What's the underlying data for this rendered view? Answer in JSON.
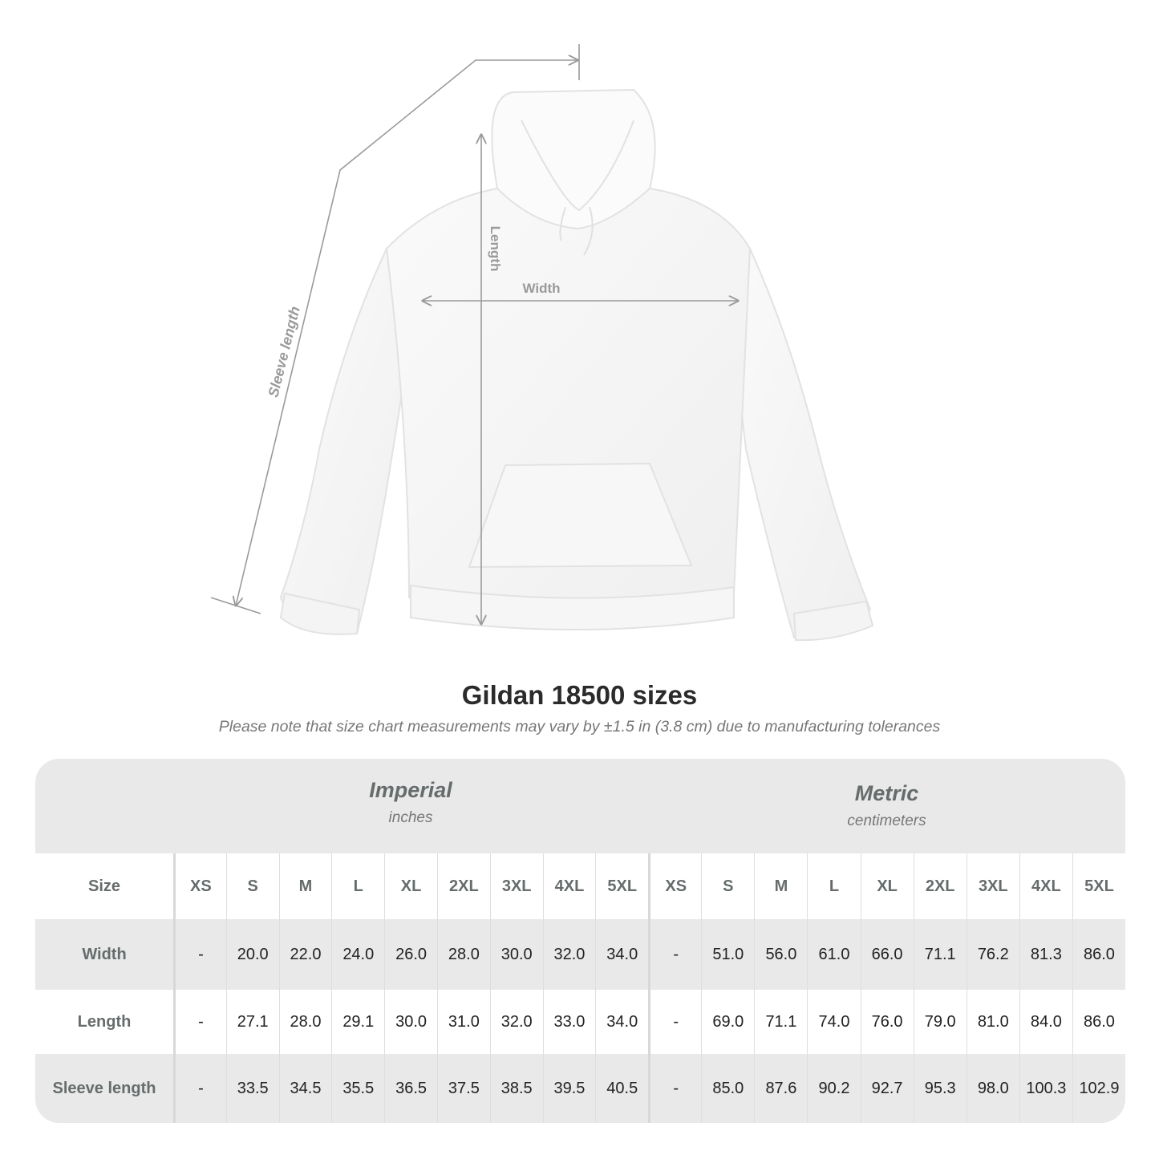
{
  "diagram": {
    "labels": {
      "length": "Length",
      "width": "Width",
      "sleeve": "Sleeve length"
    },
    "line_color": "#9a9a9a"
  },
  "title": "Gildan 18500 sizes",
  "note": "Please note that size chart measurements may vary by ±1.5 in (3.8 cm) due to manufacturing tolerances",
  "table": {
    "imperial": {
      "name": "Imperial",
      "unit": "inches"
    },
    "metric": {
      "name": "Metric",
      "unit": "centimeters"
    },
    "size_label": "Size",
    "sizes": [
      "XS",
      "S",
      "M",
      "L",
      "XL",
      "2XL",
      "3XL",
      "4XL",
      "5XL"
    ],
    "rows": [
      {
        "label": "Width",
        "imperial": [
          "-",
          "20.0",
          "22.0",
          "24.0",
          "26.0",
          "28.0",
          "30.0",
          "32.0",
          "34.0"
        ],
        "metric": [
          "-",
          "51.0",
          "56.0",
          "61.0",
          "66.0",
          "71.1",
          "76.2",
          "81.3",
          "86.0"
        ]
      },
      {
        "label": "Length",
        "imperial": [
          "-",
          "27.1",
          "28.0",
          "29.1",
          "30.0",
          "31.0",
          "32.0",
          "33.0",
          "34.0"
        ],
        "metric": [
          "-",
          "69.0",
          "71.1",
          "74.0",
          "76.0",
          "79.0",
          "81.0",
          "84.0",
          "86.0"
        ]
      },
      {
        "label": "Sleeve length",
        "imperial": [
          "-",
          "33.5",
          "34.5",
          "35.5",
          "36.5",
          "37.5",
          "38.5",
          "39.5",
          "40.5"
        ],
        "metric": [
          "-",
          "85.0",
          "87.6",
          "90.2",
          "92.7",
          "95.3",
          "98.0",
          "100.3",
          "102.9"
        ]
      }
    ]
  }
}
